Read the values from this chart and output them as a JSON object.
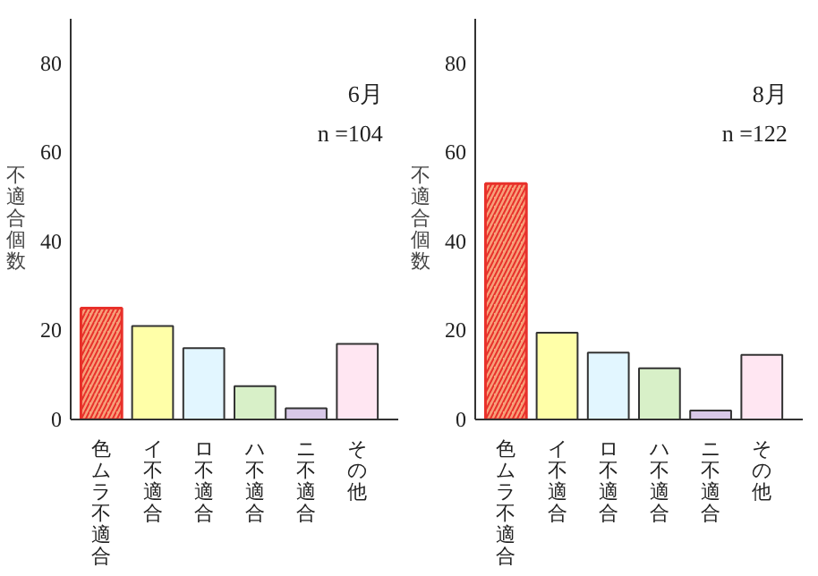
{
  "chart_data": [
    {
      "type": "bar",
      "categories": [
        "色ムラ不適合",
        "イ不適合",
        "ロ不適合",
        "ハ不適合",
        "ニ不適合",
        "その他"
      ],
      "values": [
        25,
        21,
        16,
        7.5,
        2.5,
        17
      ],
      "colors": [
        "#f7a07a",
        "#ffffa8",
        "#e2f6ff",
        "#d8f0c8",
        "#d8c8e8",
        "#ffe6f2"
      ],
      "ylabel": "不適合個数",
      "ylim": [
        0,
        90
      ],
      "yticks": [
        0,
        20,
        40,
        60,
        80
      ],
      "grid": false,
      "annotations": [
        "6月",
        "n =104"
      ]
    },
    {
      "type": "bar",
      "categories": [
        "色ムラ不適合",
        "イ不適合",
        "ロ不適合",
        "ハ不適合",
        "ニ不適合",
        "その他"
      ],
      "values": [
        53,
        19.5,
        15,
        11.5,
        2,
        14.5
      ],
      "colors": [
        "#f7a07a",
        "#ffffa8",
        "#e2f6ff",
        "#d8f0c8",
        "#d8c8e8",
        "#ffe6f2"
      ],
      "ylabel": "不適合個数",
      "ylim": [
        0,
        90
      ],
      "yticks": [
        0,
        20,
        40,
        60,
        80
      ],
      "grid": false,
      "annotations": [
        "8月",
        "n =122"
      ]
    }
  ]
}
